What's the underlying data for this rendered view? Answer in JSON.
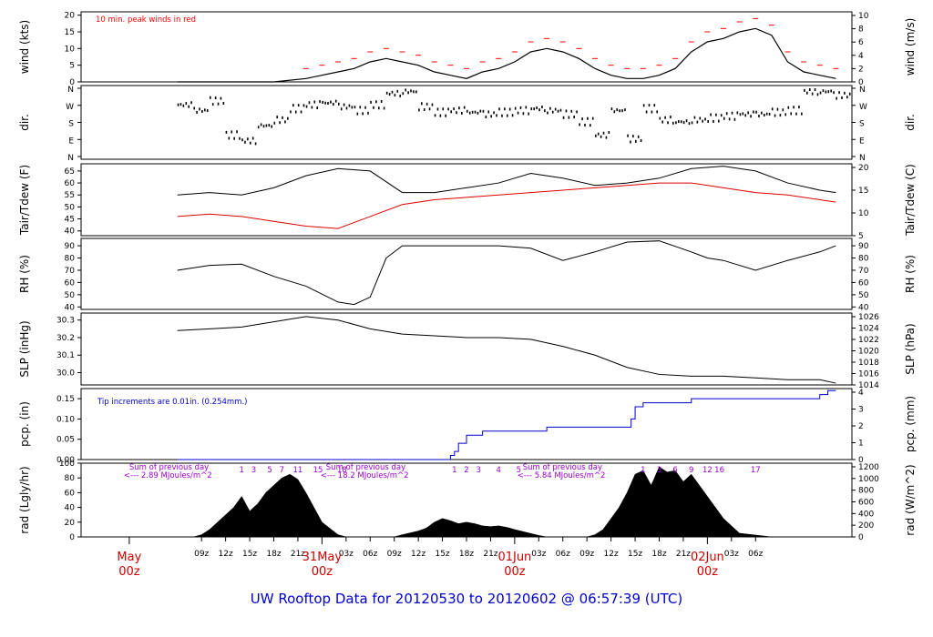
{
  "page": {
    "footer_title": "UW Rooftop Data for 20120530  to  20120602 @ 06:57:39  (UTC)",
    "colors": {
      "primary": "#000000",
      "dewpoint": "#dd0000",
      "gust": "#ff0000",
      "precip": "#0000cc",
      "annot": "#9900cc",
      "footer": "#0000cc",
      "time_major": "#cc0000"
    }
  },
  "chart_data": [
    {
      "type": "line",
      "id": "wind",
      "ylabel_left": "wind (kts)",
      "ylabel_right": "wind (m/s)",
      "annotation": "10 min. peak winds in red",
      "ylim": [
        0,
        21
      ],
      "yticks_left": [
        0,
        5,
        10,
        15,
        20
      ],
      "yticks_right": [
        0,
        2,
        4,
        6,
        8,
        10
      ],
      "series": [
        {
          "name": "wind",
          "x": [
            0,
            4,
            8,
            12,
            16,
            18,
            20,
            22,
            24,
            26,
            28,
            30,
            32,
            34,
            36,
            38,
            40,
            42,
            44,
            46,
            48,
            50,
            52,
            54,
            56,
            58,
            60,
            62,
            64,
            66,
            68,
            70,
            72,
            74,
            76,
            78,
            80,
            82
          ],
          "values": [
            0,
            0,
            0,
            0,
            1,
            2,
            3,
            4,
            6,
            7,
            6,
            5,
            3,
            2,
            1,
            3,
            4,
            6,
            9,
            10,
            9,
            7,
            4,
            2,
            1,
            1,
            2,
            4,
            9,
            12,
            13,
            15,
            16,
            14,
            6,
            3,
            2,
            1
          ]
        }
      ]
    },
    {
      "type": "scatter",
      "id": "dir",
      "ylabel_left": "dir.",
      "ylabel_right": "dir.",
      "yticks_left_labels": [
        "N",
        "E",
        "S",
        "W",
        "N"
      ],
      "yticks_right_labels": [
        "N",
        "E",
        "S",
        "W",
        "N"
      ],
      "series": [
        {
          "name": "direction",
          "x": [
            0,
            2,
            4,
            6,
            8,
            10,
            12,
            14,
            16,
            18,
            20,
            22,
            24,
            26,
            28,
            30,
            32,
            34,
            36,
            38,
            40,
            42,
            44,
            46,
            48,
            50,
            52,
            54,
            56,
            58,
            60,
            62,
            64,
            66,
            68,
            70,
            72,
            74,
            76,
            78,
            80,
            82
          ],
          "values": [
            280,
            250,
            300,
            120,
            90,
            170,
            200,
            260,
            280,
            290,
            270,
            250,
            280,
            340,
            350,
            270,
            240,
            250,
            240,
            230,
            240,
            250,
            260,
            250,
            230,
            190,
            120,
            250,
            100,
            260,
            200,
            190,
            200,
            210,
            220,
            230,
            230,
            240,
            250,
            350,
            350,
            330
          ]
        }
      ]
    },
    {
      "type": "line",
      "id": "temp",
      "ylabel_left": "Tair/Tdew (F)",
      "ylabel_right": "Tair/Tdew (C)",
      "ylim": [
        38,
        68
      ],
      "yticks_left": [
        40,
        45,
        50,
        55,
        60,
        65
      ],
      "yticks_right": [
        5,
        10,
        15,
        20
      ],
      "series": [
        {
          "name": "Tair",
          "x": [
            0,
            4,
            8,
            12,
            16,
            20,
            24,
            28,
            32,
            36,
            40,
            44,
            48,
            52,
            56,
            60,
            64,
            68,
            72,
            76,
            80,
            82
          ],
          "values": [
            55,
            56,
            55,
            58,
            63,
            66,
            65,
            56,
            56,
            58,
            60,
            64,
            62,
            59,
            60,
            62,
            66,
            67,
            65,
            60,
            57,
            56
          ]
        },
        {
          "name": "Tdew",
          "x": [
            0,
            4,
            8,
            12,
            16,
            20,
            24,
            28,
            32,
            36,
            40,
            44,
            48,
            52,
            56,
            60,
            64,
            68,
            72,
            76,
            80,
            82
          ],
          "values": [
            46,
            47,
            46,
            44,
            42,
            41,
            46,
            51,
            53,
            54,
            55,
            56,
            57,
            58,
            59,
            60,
            60,
            58,
            56,
            55,
            53,
            52
          ]
        }
      ]
    },
    {
      "type": "line",
      "id": "rh",
      "ylabel_left": "RH (%)",
      "ylabel_right": "RH (%)",
      "ylim": [
        38,
        96
      ],
      "yticks_left": [
        40,
        50,
        60,
        70,
        80,
        90
      ],
      "yticks_right": [
        40,
        50,
        60,
        70,
        80,
        90
      ],
      "series": [
        {
          "name": "RH",
          "x": [
            0,
            4,
            8,
            12,
            16,
            20,
            22,
            24,
            26,
            28,
            32,
            36,
            40,
            44,
            48,
            52,
            56,
            60,
            64,
            66,
            68,
            72,
            76,
            80,
            82
          ],
          "values": [
            70,
            74,
            75,
            65,
            57,
            44,
            42,
            48,
            80,
            90,
            90,
            90,
            90,
            88,
            78,
            85,
            93,
            94,
            85,
            80,
            78,
            70,
            78,
            85,
            90
          ]
        }
      ]
    },
    {
      "type": "line",
      "id": "slp",
      "ylabel_left": "SLP (inHg)",
      "ylabel_right": "SLP (hPa)",
      "ylim": [
        29.93,
        30.34
      ],
      "yticks_left": [
        30.0,
        30.1,
        30.2,
        30.3
      ],
      "yticks_right": [
        1014,
        1016,
        1018,
        1020,
        1022,
        1024,
        1026
      ],
      "series": [
        {
          "name": "SLP",
          "x": [
            0,
            4,
            8,
            12,
            16,
            20,
            24,
            28,
            32,
            36,
            40,
            44,
            48,
            52,
            56,
            60,
            64,
            68,
            72,
            76,
            80,
            82
          ],
          "values": [
            30.24,
            30.25,
            30.26,
            30.29,
            30.32,
            30.3,
            30.25,
            30.22,
            30.21,
            30.2,
            30.2,
            30.19,
            30.15,
            30.1,
            30.03,
            29.99,
            29.98,
            29.98,
            29.97,
            29.96,
            29.96,
            29.94
          ]
        }
      ]
    },
    {
      "type": "line",
      "id": "pcp",
      "ylabel_left": "pcp. (in)",
      "ylabel_right": "pcp. (mm)",
      "annotation": "Tip increments are 0.01in. (0.254mm.)",
      "ylim": [
        0,
        0.175
      ],
      "yticks_left": [
        0.0,
        0.05,
        0.1,
        0.15
      ],
      "yticks_right": [
        0,
        1,
        2,
        3,
        4
      ],
      "series": [
        {
          "name": "precip",
          "x": [
            0,
            33.5,
            34,
            34.5,
            35,
            36,
            38,
            45,
            46,
            56,
            56.5,
            57,
            58,
            60,
            62,
            64,
            66,
            70,
            78,
            80,
            81,
            82
          ],
          "values": [
            0,
            0,
            0.01,
            0.02,
            0.04,
            0.06,
            0.07,
            0.07,
            0.08,
            0.08,
            0.1,
            0.13,
            0.14,
            0.14,
            0.14,
            0.15,
            0.15,
            0.15,
            0.15,
            0.16,
            0.17,
            0.17
          ]
        }
      ]
    },
    {
      "type": "area",
      "id": "rad",
      "ylabel_left": "rad (Lgly/hr)",
      "ylabel_right": "rad (W/m^2)",
      "ylim": [
        0,
        100
      ],
      "yticks_left": [
        0,
        20,
        40,
        60,
        80,
        100
      ],
      "yticks_right": [
        0,
        200,
        400,
        600,
        800,
        1000,
        1200
      ],
      "annotations": [
        {
          "text": "Sum of previous day",
          "x": -6
        },
        {
          "text": "<--- 2.89 MJoules/m^2",
          "x": -6
        },
        {
          "text": "Sum of previous day",
          "x": 18.5
        },
        {
          "text": "<--- 18.2 MJoules/m^2",
          "x": 18.5
        },
        {
          "text": "Sum of previous day",
          "x": 43
        },
        {
          "text": "<--- 5.84 MJoules/m^2",
          "x": 43
        }
      ],
      "hour_markers": [
        {
          "text": "1",
          "x": 8
        },
        {
          "text": "3",
          "x": 9.5
        },
        {
          "text": "5",
          "x": 11.5
        },
        {
          "text": "7",
          "x": 13
        },
        {
          "text": "11",
          "x": 15
        },
        {
          "text": "15",
          "x": 17.5
        },
        {
          "text": "18",
          "x": 20.5
        },
        {
          "text": "1",
          "x": 34.5
        },
        {
          "text": "2",
          "x": 36
        },
        {
          "text": "3",
          "x": 37.5
        },
        {
          "text": "4",
          "x": 40
        },
        {
          "text": "5",
          "x": 42.5
        },
        {
          "text": "1",
          "x": 58
        },
        {
          "text": "3",
          "x": 60
        },
        {
          "text": "6",
          "x": 62
        },
        {
          "text": "9",
          "x": 64
        },
        {
          "text": "12",
          "x": 66
        },
        {
          "text": "16",
          "x": 67.5
        },
        {
          "text": "17",
          "x": 72
        }
      ],
      "series": [
        {
          "name": "radiation",
          "x": [
            0,
            2,
            3,
            4,
            5,
            6,
            7,
            8,
            9,
            10,
            11,
            12,
            13,
            14,
            15,
            16,
            17,
            18,
            20,
            21,
            26,
            27,
            28,
            30,
            31,
            32,
            33,
            34,
            35,
            36,
            37,
            38,
            39,
            40,
            41,
            42,
            45,
            46,
            50,
            51,
            52,
            53,
            54,
            55,
            56,
            57,
            58,
            59,
            60,
            61,
            62,
            63,
            64,
            65,
            66,
            67,
            68,
            69,
            70,
            74,
            82
          ],
          "values": [
            0,
            0,
            3,
            10,
            20,
            30,
            40,
            55,
            35,
            45,
            60,
            70,
            80,
            85,
            78,
            60,
            40,
            20,
            3,
            0,
            0,
            0,
            3,
            8,
            12,
            20,
            25,
            22,
            18,
            20,
            18,
            15,
            14,
            15,
            13,
            10,
            2,
            0,
            0,
            0,
            3,
            10,
            25,
            40,
            60,
            85,
            90,
            70,
            95,
            88,
            90,
            75,
            85,
            70,
            55,
            40,
            25,
            15,
            5,
            0,
            0
          ]
        }
      ]
    },
    {
      "type": "axis",
      "id": "time",
      "xlim": [
        -12,
        84
      ],
      "minor_ticks": [
        {
          "label": "09z",
          "x": 3
        },
        {
          "label": "12z",
          "x": 6
        },
        {
          "label": "15z",
          "x": 9
        },
        {
          "label": "18z",
          "x": 12
        },
        {
          "label": "21z",
          "x": 15
        },
        {
          "label": "03z",
          "x": 21
        },
        {
          "label": "06z",
          "x": 24
        },
        {
          "label": "09z",
          "x": 27
        },
        {
          "label": "12z",
          "x": 30
        },
        {
          "label": "15z",
          "x": 33
        },
        {
          "label": "18z",
          "x": 36
        },
        {
          "label": "21z",
          "x": 39
        },
        {
          "label": "03z",
          "x": 45
        },
        {
          "label": "06z",
          "x": 48
        },
        {
          "label": "09z",
          "x": 51
        },
        {
          "label": "12z",
          "x": 54
        },
        {
          "label": "15z",
          "x": 57
        },
        {
          "label": "18z",
          "x": 60
        },
        {
          "label": "21z",
          "x": 63
        },
        {
          "label": "03z",
          "x": 69
        },
        {
          "label": "06z",
          "x": 72
        }
      ],
      "major_ticks": [
        {
          "label": "May",
          "sub": "00z",
          "x": -6
        },
        {
          "label": "31May",
          "sub": "00z",
          "x": 18
        },
        {
          "label": "01Jun",
          "sub": "00z",
          "x": 42
        },
        {
          "label": "02Jun",
          "sub": "00z",
          "x": 66
        }
      ]
    }
  ]
}
